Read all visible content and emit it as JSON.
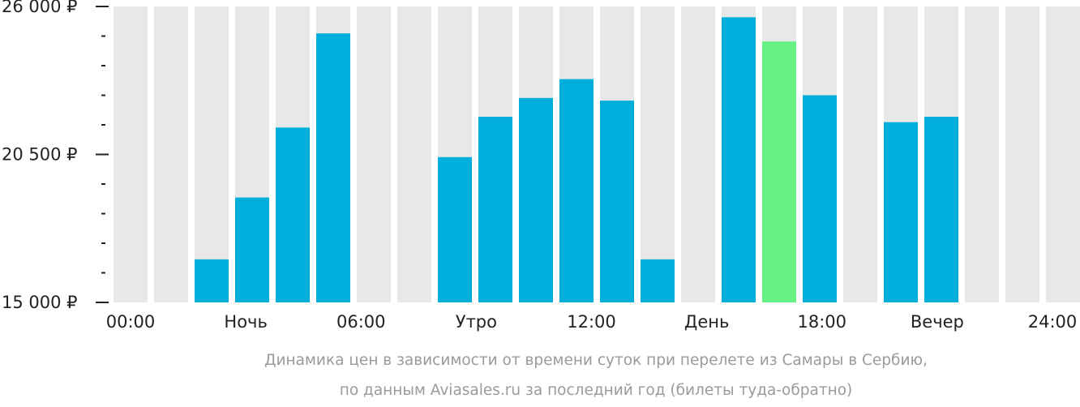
{
  "chart_data": {
    "type": "bar",
    "categories": [
      "00:00",
      "01:00",
      "02:00",
      "03:00",
      "04:00",
      "05:00",
      "06:00",
      "07:00",
      "08:00",
      "09:00",
      "10:00",
      "11:00",
      "12:00",
      "13:00",
      "14:00",
      "15:00",
      "16:00",
      "17:00",
      "18:00",
      "19:00",
      "20:00",
      "21:00",
      "22:00",
      "23:00"
    ],
    "values": [
      null,
      null,
      16600,
      18900,
      21500,
      25000,
      null,
      null,
      20400,
      21900,
      22600,
      23300,
      22500,
      16600,
      null,
      25600,
      24700,
      22700,
      null,
      21700,
      21900,
      null,
      null,
      null
    ],
    "highlight_index": 16,
    "ylim": [
      15000,
      26000
    ],
    "yticks": [
      {
        "value": 26000,
        "label": "26 000 ₽"
      },
      {
        "value": 20500,
        "label": "20 500 ₽"
      },
      {
        "value": 15000,
        "label": "15 000 ₽"
      }
    ],
    "minor_tick_step": 1100,
    "xticks": [
      "00:00",
      "Ночь",
      "06:00",
      "Утро",
      "12:00",
      "День",
      "18:00",
      "Вечер",
      "24:00"
    ],
    "caption_lines": [
      "Динамика цен в зависимости от времени суток при перелете из Самары в Сербию,",
      "по данным Aviasales.ru за последний год (билеты туда-обратно)"
    ],
    "colors": {
      "background_bar": "#e8e8e8",
      "bar": "#00aedb",
      "highlight": "#66f185",
      "axis": "#222222",
      "caption": "#9a9a9a"
    }
  }
}
